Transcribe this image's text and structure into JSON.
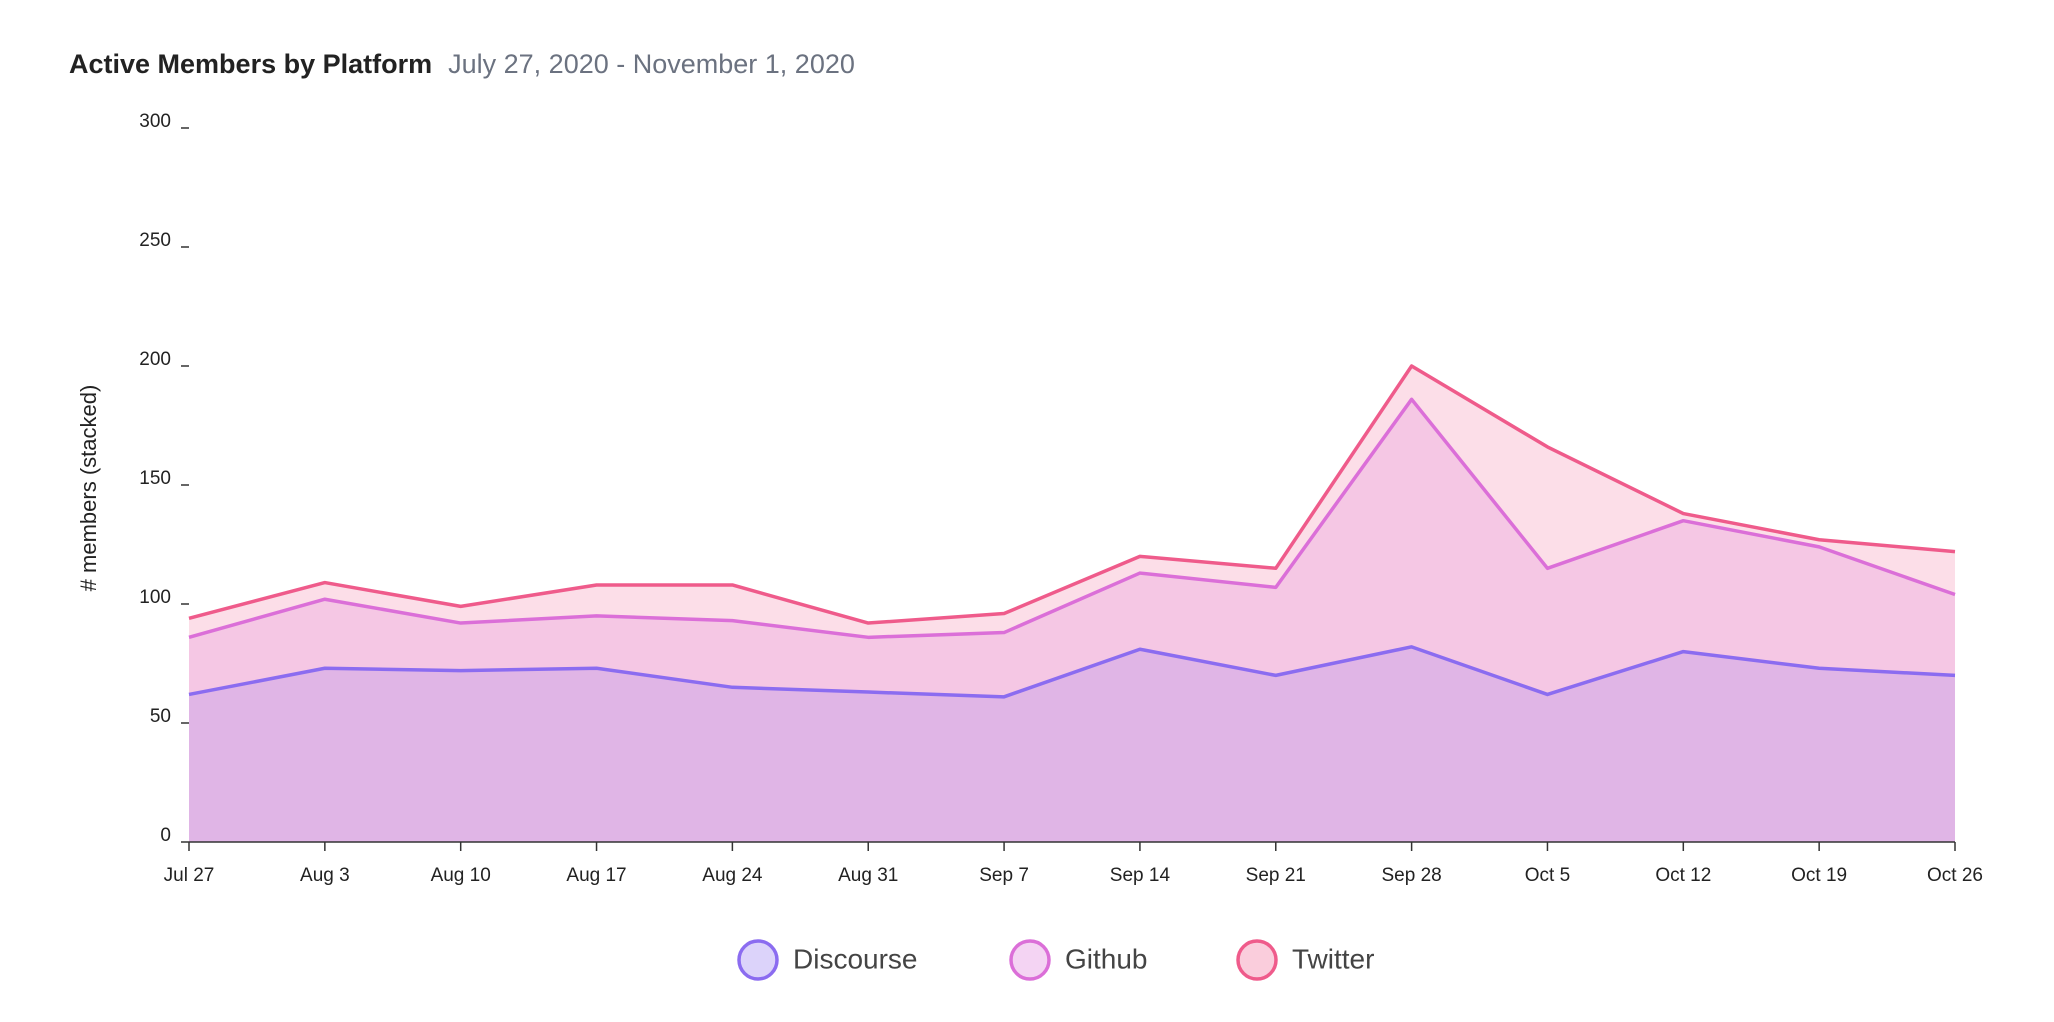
{
  "chart_data": {
    "type": "stacked-area",
    "title": "Active Members by Platform",
    "subtitle": "July 27, 2020 - November 1, 2020",
    "y_label": "# members (stacked)",
    "categories": [
      "Jul 27",
      "Aug 3",
      "Aug 10",
      "Aug 17",
      "Aug 24",
      "Aug 31",
      "Sep 7",
      "Sep 14",
      "Sep 21",
      "Sep 28",
      "Oct 5",
      "Oct 12",
      "Oct 19",
      "Oct 26"
    ],
    "series": [
      {
        "name": "Discourse",
        "color": "#8b6cf0",
        "values": [
          62,
          73,
          72,
          73,
          65,
          63,
          61,
          81,
          70,
          82,
          62,
          80,
          73,
          70
        ]
      },
      {
        "name": "Github",
        "color": "#db6fd8",
        "values": [
          24,
          29,
          20,
          22,
          28,
          23,
          27,
          32,
          37,
          104,
          53,
          55,
          51,
          34
        ]
      },
      {
        "name": "Twitter",
        "color": "#ef5b8b",
        "values": [
          8,
          7,
          7,
          13,
          15,
          6,
          8,
          7,
          8,
          14,
          51,
          3,
          3,
          18
        ]
      }
    ],
    "ylim": [
      0,
      300
    ],
    "yticks": [
      0,
      50,
      100,
      150,
      200,
      250,
      300
    ],
    "legend": "bottom"
  }
}
